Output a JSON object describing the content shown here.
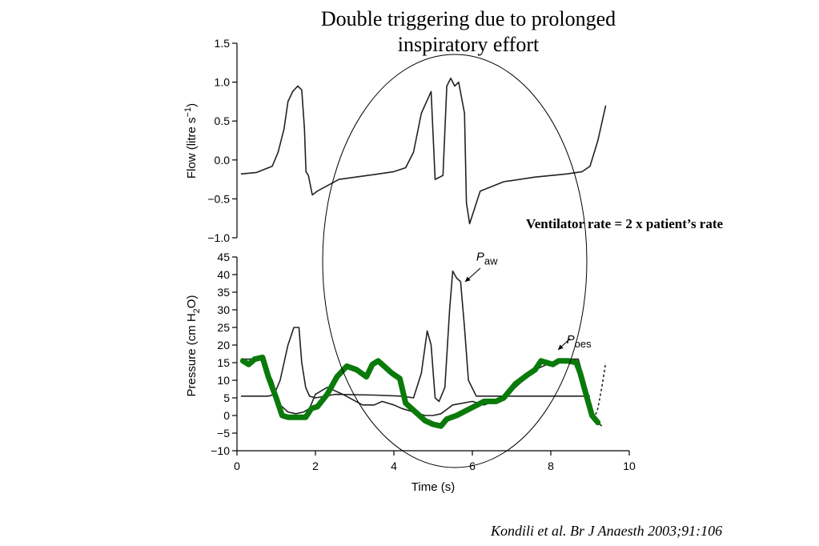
{
  "slide": {
    "title_line1": "Double triggering due to prolonged",
    "title_line2": "inspiratory effort",
    "annotation": "Ventilator rate = 2 x patient’s rate",
    "citation": "Kondili et al. Br J Anaesth 2003;91:106"
  },
  "colors": {
    "trace": "#222222",
    "highlight": "#0a7a0a",
    "ellipse": "#000000"
  },
  "chart_data": [
    {
      "type": "line",
      "title": "",
      "ylabel": "Flow (litre s−1)",
      "xlim": [
        0,
        10
      ],
      "ylim": [
        -1.0,
        1.5
      ],
      "yticks": [
        "−1.0",
        "−0.5",
        "0.0",
        "0.5",
        "1.0",
        "1.5"
      ],
      "ytick_values": [
        -1.0,
        -0.5,
        0.0,
        0.5,
        1.0,
        1.5
      ],
      "series": [
        {
          "x": [
            0.1,
            0.5,
            0.9,
            1.05,
            1.2,
            1.3,
            1.42,
            1.55,
            1.65,
            1.72,
            1.76,
            1.82,
            1.92,
            2.05,
            2.6,
            3.6,
            4.0,
            4.3,
            4.5,
            4.7,
            4.95,
            5.05,
            5.25,
            5.35,
            5.45,
            5.55,
            5.65,
            5.8,
            5.85,
            5.93,
            6.2,
            6.8,
            7.6,
            8.4,
            8.8,
            9.0,
            9.2,
            9.4
          ],
          "y": [
            -0.18,
            -0.16,
            -0.08,
            0.1,
            0.4,
            0.75,
            0.88,
            0.95,
            0.9,
            0.4,
            -0.15,
            -0.2,
            -0.45,
            -0.4,
            -0.25,
            -0.18,
            -0.15,
            -0.1,
            0.1,
            0.6,
            0.88,
            -0.25,
            -0.2,
            0.95,
            1.05,
            0.95,
            1.0,
            0.6,
            -0.55,
            -0.82,
            -0.4,
            -0.28,
            -0.22,
            -0.18,
            -0.15,
            -0.08,
            0.25,
            0.7
          ]
        }
      ]
    },
    {
      "type": "line",
      "title": "",
      "xlabel": "Time (s)",
      "ylabel": "Pressure (cm H2O)",
      "xlim": [
        0,
        10
      ],
      "ylim": [
        -10,
        45
      ],
      "xticks": [
        "0",
        "2",
        "4",
        "6",
        "8",
        "10"
      ],
      "xtick_values": [
        0,
        2,
        4,
        6,
        8,
        10
      ],
      "yticks": [
        "−10",
        "−5",
        "0",
        "5",
        "10",
        "15",
        "20",
        "25",
        "30",
        "35",
        "40",
        "45"
      ],
      "ytick_values": [
        -10,
        -5,
        0,
        5,
        10,
        15,
        20,
        25,
        30,
        35,
        40,
        45
      ],
      "labels": [
        {
          "text": "P",
          "sub": "aw",
          "x": 6.1,
          "y": 44
        },
        {
          "text": "P",
          "sub": "oes",
          "x": 8.4,
          "y": 20.5
        }
      ],
      "series": [
        {
          "name": "Paw",
          "x": [
            0.1,
            0.8,
            0.95,
            1.1,
            1.3,
            1.45,
            1.58,
            1.65,
            1.75,
            1.85,
            2.0,
            2.5,
            3.5,
            4.2,
            4.5,
            4.7,
            4.85,
            4.95,
            5.05,
            5.15,
            5.3,
            5.42,
            5.5,
            5.6,
            5.7,
            5.8,
            5.9,
            6.1,
            6.5,
            7.0,
            7.5,
            8.0,
            8.3,
            8.6,
            9.0
          ],
          "y": [
            5.5,
            5.5,
            6,
            10,
            20,
            25,
            25,
            15,
            8,
            5.5,
            5,
            6,
            5.8,
            5.5,
            5,
            12,
            24,
            20,
            5,
            4,
            8,
            30,
            41,
            39,
            38,
            25,
            10,
            5.5,
            5.5,
            5.5,
            5.5,
            5.5,
            5.5,
            5.5,
            5.5
          ]
        },
        {
          "name": "Poes",
          "x": [
            0.1,
            0.6,
            0.9,
            1.1,
            1.3,
            1.5,
            1.7,
            1.85,
            2.0,
            2.3,
            2.7,
            3.2,
            3.5,
            3.7,
            4.0,
            4.2,
            4.5,
            4.8,
            5.0,
            5.2,
            5.5,
            6.0,
            6.3,
            6.8,
            7.2,
            7.6,
            8.0,
            8.3,
            8.7,
            8.9,
            9.1,
            9.3
          ],
          "y": [
            16,
            16,
            10,
            3,
            1,
            0.5,
            1,
            2,
            6,
            8,
            6,
            3,
            3,
            4,
            3,
            2,
            1,
            0,
            0,
            0.5,
            3,
            4,
            3,
            5,
            9,
            13,
            15,
            16,
            16,
            8,
            -1,
            -3
          ]
        },
        {
          "name": "",
          "x": [
            9.1,
            9.2,
            9.3,
            9.4
          ],
          "y": [
            -1,
            2,
            8,
            15
          ]
        }
      ]
    }
  ],
  "highlight_trace": {
    "x": [
      0.15,
      0.3,
      0.45,
      0.65,
      0.8,
      1.0,
      1.15,
      1.3,
      1.55,
      1.75,
      1.9,
      2.05,
      2.3,
      2.55,
      2.8,
      3.05,
      3.3,
      3.45,
      3.6,
      3.75,
      3.95,
      4.15,
      4.3,
      4.55,
      4.8,
      5.0,
      5.2,
      5.35,
      5.6,
      5.95,
      6.3,
      6.6,
      6.8,
      7.1,
      7.4,
      7.6,
      7.75,
      7.9,
      8.05,
      8.2,
      8.45,
      8.65,
      8.75,
      8.85,
      8.95,
      9.05,
      9.2
    ],
    "y": [
      15.5,
      14.5,
      16,
      16.5,
      11,
      5,
      0,
      -0.5,
      -0.5,
      -0.5,
      2,
      2.5,
      6,
      11,
      14,
      13,
      11,
      14.5,
      15.5,
      14,
      12,
      10.5,
      3.5,
      1,
      -1.5,
      -2.5,
      -3,
      -1,
      0,
      2,
      4,
      4,
      5,
      9,
      11.5,
      13,
      15.5,
      15,
      14.5,
      15.5,
      15.5,
      15,
      12,
      8,
      4,
      0,
      -2
    ]
  }
}
